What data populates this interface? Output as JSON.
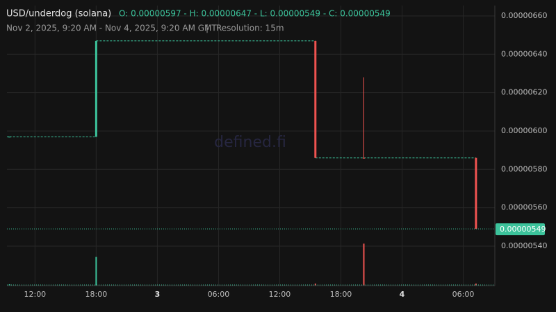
{
  "chart_data": {
    "type": "candlestick",
    "title": "USD/underdog (solana)",
    "ohlc_label": "O: 0.00000597 - H: 0.00000647 - L: 0.00000549 - C: 0.00000549",
    "subtitle": "Nov 2, 2025, 9:20 AM - Nov 4, 2025, 9:20 AM GMT",
    "separator": "|",
    "resolution": "Resolution: 15m",
    "watermark": "defined.fi",
    "up_color": "#3cc39b",
    "down_color": "#ef5350",
    "x": [
      9.5,
      18,
      39.5,
      44.25,
      55.25
    ],
    "open": [
      5.97e-06,
      5.97e-06,
      6.47e-06,
      5.86e-06,
      5.86e-06
    ],
    "high": [
      5.97e-06,
      6.47e-06,
      6.47e-06,
      6.28e-06,
      5.86e-06
    ],
    "low": [
      5.97e-06,
      5.97e-06,
      5.86e-06,
      5.86e-06,
      5.49e-06
    ],
    "close": [
      5.97e-06,
      6.47e-06,
      5.86e-06,
      5.86e-06,
      5.49e-06
    ],
    "volume": [
      2,
      41,
      3,
      60,
      3
    ],
    "xlim": [
      9.25,
      57.1
    ],
    "xticks": [
      {
        "value": 12,
        "label": "12:00"
      },
      {
        "value": 18,
        "label": "18:00"
      },
      {
        "value": 24,
        "label": "3"
      },
      {
        "value": 30,
        "label": "06:00"
      },
      {
        "value": 36,
        "label": "12:00"
      },
      {
        "value": 42,
        "label": "18:00"
      },
      {
        "value": 48,
        "label": "4"
      },
      {
        "value": 54,
        "label": "06:00"
      }
    ],
    "ylim": [
      5.194e-06,
      6.654e-06
    ],
    "yticks": [
      {
        "value": 5.4e-06,
        "label": "0.00000540"
      },
      {
        "value": 5.6e-06,
        "label": "0.00000560"
      },
      {
        "value": 5.8e-06,
        "label": "0.00000580"
      },
      {
        "value": 6e-06,
        "label": "0.00000600"
      },
      {
        "value": 6.2e-06,
        "label": "0.00000620"
      },
      {
        "value": 6.4e-06,
        "label": "0.00000640"
      },
      {
        "value": 6.6e-06,
        "label": "0.00000660"
      }
    ],
    "y2lim": [
      0,
      400
    ],
    "last_price": {
      "value": 5.49e-06,
      "label": "0.00000549"
    },
    "grid": true
  }
}
